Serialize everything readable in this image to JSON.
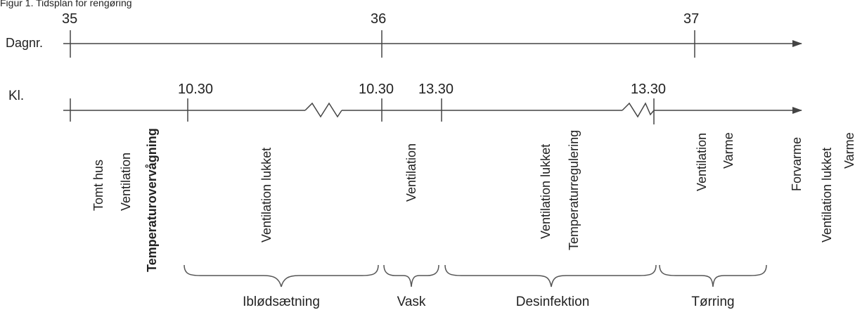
{
  "caption": "Figur 1. Tidsplan for rengøring",
  "colors": {
    "line": "#444444",
    "text": "#222222",
    "brace": "#555555"
  },
  "day_axis": {
    "label": "Dagnr.",
    "ticks": [
      "35",
      "36",
      "37"
    ]
  },
  "time_axis": {
    "label": "Kl.",
    "ticks": [
      "10.30",
      "10.30",
      "13.30",
      "13.30"
    ]
  },
  "activities": {
    "tomt_hus": "Tomt hus",
    "ventilation_1": "Ventilation",
    "temperaturovervaagning": "Temperaturovervågning",
    "ventilation_lukket_1": "Ventilation lukket",
    "ventilation_2": "Ventilation",
    "ventilation_lukket_2": "Ventilation lukket",
    "temperaturregulering": "Temperaturregulering",
    "ventilation_3": "Ventilation",
    "varme_1": "Varme",
    "forvarme": "Forvarme",
    "ventilation_lukket_3": "Ventilation lukket",
    "varme_2": "Varme"
  },
  "phases": {
    "iblodsaetning": "Iblødsætning",
    "vask": "Vask",
    "desinfektion": "Desinfektion",
    "torring": "Tørring"
  }
}
